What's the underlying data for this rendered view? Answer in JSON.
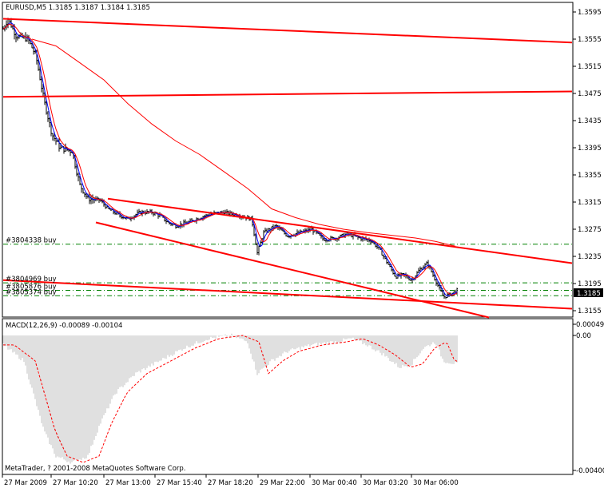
{
  "main_header": "EURUSD,M5  1.3185 1.3187 1.3184 1.3185",
  "macd_header": "MACD(12,26,9) -0.00089 -0.00104",
  "copyright": "MetaTrader, ? 2001-2008 MetaQuotes Software Corp.",
  "current_price": "1.3185",
  "price_axis": [
    "1.3595",
    "1.3555",
    "1.3515",
    "1.3475",
    "1.3435",
    "1.3395",
    "1.3355",
    "1.3315",
    "1.3275",
    "1.3235",
    "1.3195",
    "1.3155"
  ],
  "macd_axis": [
    "0.00049",
    "0.00",
    "-0.00400"
  ],
  "time_axis": [
    "27 Mar 2009",
    "27 Mar 10:20",
    "27 Mar 13:00",
    "27 Mar 15:40",
    "27 Mar 18:20",
    "29 Mar 22:00",
    "30 Mar 00:40",
    "30 Mar 03:20",
    "30 Mar 06:00"
  ],
  "orders": [
    {
      "label": "#3804338 buy",
      "price": 1.3253
    },
    {
      "label": "#3804969 buy",
      "price": 1.3196
    },
    {
      "label": "#3805876 buy",
      "price": 1.3185
    },
    {
      "label": "#3805374 buy",
      "price": 1.3177
    }
  ],
  "colors": {
    "bars": "#000000",
    "trendline": "#ff0000",
    "ma_fast": "#0000ff",
    "ma_slow": "#ff0000",
    "order_line": "#008000",
    "histogram": "#c0c0c0",
    "signal": "#ff0000",
    "price_tag_bg": "#000000",
    "price_tag_fg": "#ffffff"
  },
  "chart_data": {
    "type": "line",
    "title": "EURUSD,M5",
    "ohlc_last": {
      "open": 1.3185,
      "high": 1.3187,
      "low": 1.3184,
      "close": 1.3185
    },
    "ylim": [
      1.3145,
      1.3605
    ],
    "x": [
      "27 Mar 2009",
      "27 Mar 10:20",
      "27 Mar 13:00",
      "27 Mar 15:40",
      "27 Mar 18:20",
      "29 Mar 22:00",
      "30 Mar 00:40",
      "30 Mar 03:20",
      "30 Mar 06:00"
    ],
    "series": [
      {
        "values": [
          1.3565,
          1.338,
          1.331,
          1.3285,
          1.3295,
          1.329,
          1.3262,
          1.3232,
          1.3168
        ]
      }
    ],
    "macd": {
      "params": "12,26,9",
      "value": -0.00089,
      "signal": -0.00104,
      "ylim": [
        -0.004,
        0.00049
      ]
    }
  }
}
